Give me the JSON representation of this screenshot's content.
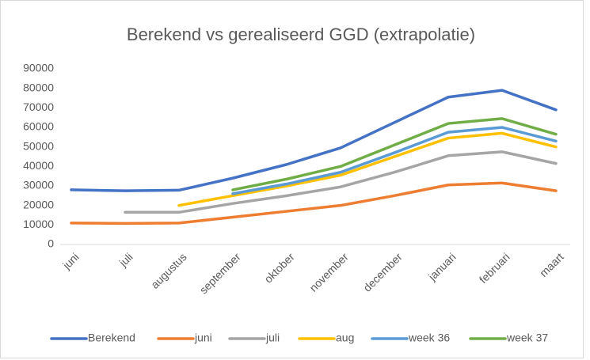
{
  "chart_data": {
    "type": "line",
    "title": "Berekend vs gerealiseerd GGD (extrapolatie)",
    "categories": [
      "juni",
      "juli",
      "augustus",
      "september",
      "oktober",
      "november",
      "december",
      "januari",
      "februari",
      "maart"
    ],
    "series": [
      {
        "name": "Berekend",
        "color": "#4472c4",
        "values": [
          28000,
          27500,
          27800,
          34000,
          41000,
          49500,
          62500,
          75500,
          79000,
          69000
        ]
      },
      {
        "name": "juni",
        "color": "#ed7d31",
        "values": [
          11000,
          10800,
          11000,
          14000,
          17000,
          20000,
          25000,
          30500,
          31500,
          27500
        ]
      },
      {
        "name": "juli",
        "color": "#a5a5a5",
        "values": [
          null,
          16500,
          16500,
          21000,
          25000,
          29500,
          37000,
          45500,
          47500,
          41500
        ]
      },
      {
        "name": "aug",
        "color": "#ffc000",
        "values": [
          null,
          null,
          20000,
          25000,
          30000,
          35500,
          45000,
          54500,
          57000,
          50000
        ]
      },
      {
        "name": "week 36",
        "color": "#5b9bd5",
        "values": [
          null,
          null,
          null,
          26000,
          31000,
          37000,
          47000,
          57500,
          60000,
          53000
        ]
      },
      {
        "name": "week 37",
        "color": "#70ad47",
        "values": [
          null,
          null,
          null,
          28000,
          33500,
          40000,
          51000,
          62000,
          64500,
          56500
        ]
      }
    ],
    "ylim": [
      0,
      90000
    ],
    "yticks": [
      0,
      10000,
      20000,
      30000,
      40000,
      50000,
      60000,
      70000,
      80000,
      90000
    ],
    "grid": false
  }
}
